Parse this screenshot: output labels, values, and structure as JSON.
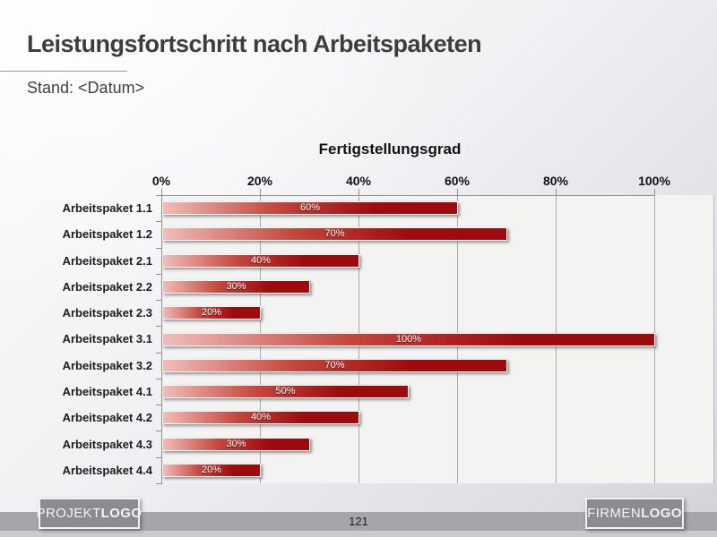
{
  "header": {
    "title": "Leistungsfortschritt nach Arbeitspaketen",
    "subtitle": "Stand: <Datum>"
  },
  "chart_data": {
    "type": "bar",
    "orientation": "horizontal",
    "title": "Fertigstellungsgrad",
    "categories": [
      "Arbeitspaket 1.1",
      "Arbeitspaket 1.2",
      "Arbeitspaket 2.1",
      "Arbeitspaket 2.2",
      "Arbeitspaket 2.3",
      "Arbeitspaket 3.1",
      "Arbeitspaket 3.2",
      "Arbeitspaket 4.1",
      "Arbeitspaket 4.2",
      "Arbeitspaket 4.3",
      "Arbeitspaket 4.4"
    ],
    "values": [
      60,
      70,
      40,
      30,
      20,
      100,
      70,
      50,
      40,
      30,
      20
    ],
    "value_label_suffix": "%",
    "bar_labels_inside": true,
    "x_ticks": [
      0,
      20,
      40,
      60,
      80,
      100
    ],
    "x_tick_labels": [
      "0%",
      "20%",
      "40%",
      "60%",
      "80%",
      "100%"
    ],
    "xlim": [
      0,
      100
    ],
    "grid": true,
    "legend": false
  },
  "footer": {
    "page_number": "121",
    "project_logo": {
      "text": "PROJEKT",
      "bold": "LOGO"
    },
    "company_logo": {
      "text": "FIRMEN",
      "bold": "LOGO"
    }
  },
  "colors": {
    "bar_gradient_start": "#f0bdb9",
    "bar_gradient_mid": "#c4473d",
    "bar_gradient_end": "#9e0b0f",
    "plot_background": "#f3f3f2",
    "gridline": "#ababab",
    "axis": "#8f8f8f",
    "footer_band": "#a6a6aa",
    "logo_box_fill": "#8b8b90",
    "title_text": "#3d3d3d"
  }
}
